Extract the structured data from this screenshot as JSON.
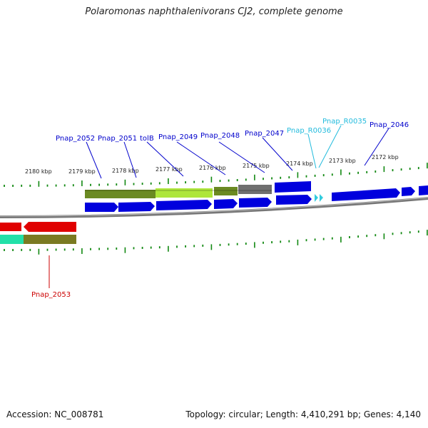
{
  "title": "Polaromonas naphthalenivorans CJ2, complete genome",
  "footer": {
    "accession": "Accession: NC_008781",
    "topology": "Topology: circular; Length: 4,410,291 bp; Genes: 4,140"
  },
  "colors": {
    "forward_cds": "#0000dd",
    "trna": "#33ccdd",
    "reverse_cds": "#e00000",
    "cog_olive": "#6b8a22",
    "cog_lime": "#aee63a",
    "cog_gray": "#6f6f6f",
    "cog_teal": "#22e0a8",
    "cog_olive_dark": "#7a7a22",
    "backbone": "#888888",
    "tick": "#118811",
    "label_forward": "#0000cc",
    "label_trna": "#22bbdd",
    "label_reverse": "#cc0000"
  },
  "kbp_ticks": [
    "2180 kbp",
    "2179 kbp",
    "2178 kbp",
    "2177 kbp",
    "2176 kbp",
    "2175 kbp",
    "2174 kbp",
    "2173 kbp",
    "2172 kbp"
  ],
  "gene_labels": [
    {
      "name": "Pnap_2052",
      "type": "forward"
    },
    {
      "name": "Pnap_2051",
      "type": "forward"
    },
    {
      "name": "tolB",
      "type": "forward"
    },
    {
      "name": "Pnap_2049",
      "type": "forward"
    },
    {
      "name": "Pnap_2048",
      "type": "forward"
    },
    {
      "name": "Pnap_2047",
      "type": "forward"
    },
    {
      "name": "Pnap_R0036",
      "type": "trna"
    },
    {
      "name": "Pnap_R0035",
      "type": "trna"
    },
    {
      "name": "Pnap_2046",
      "type": "forward"
    },
    {
      "name": "Pnap_2053",
      "type": "reverse"
    }
  ]
}
